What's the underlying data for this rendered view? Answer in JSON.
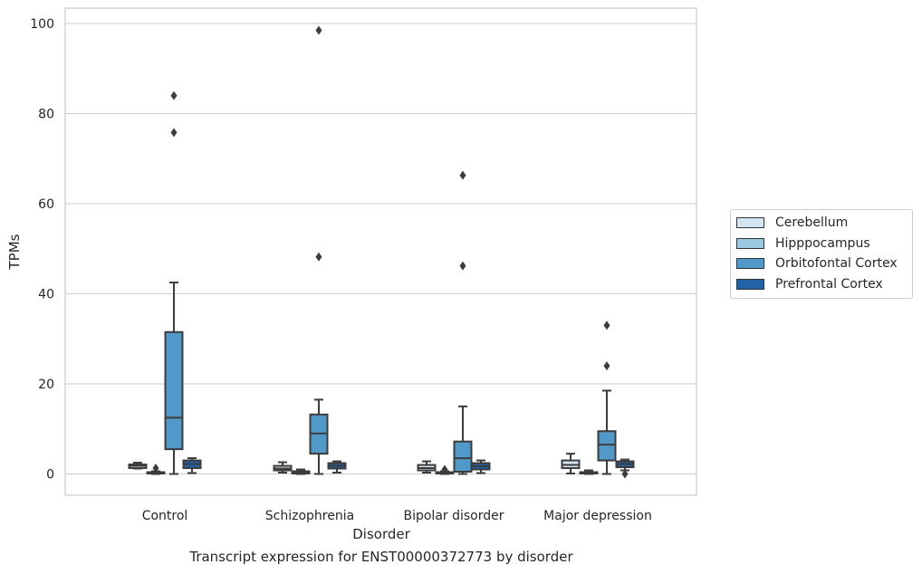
{
  "chart_data": {
    "type": "box",
    "xlabel": "Disorder",
    "ylabel": "TPMs",
    "categories": [
      "Control",
      "Schizophrenia",
      "Bipolar disorder",
      "Major depression"
    ],
    "ylim": [
      -5,
      103.5
    ],
    "yticks": [
      0,
      20,
      40,
      60,
      80,
      100
    ],
    "grid": "horizontal",
    "legend_placement": "right",
    "series": [
      {
        "name": "Cerebellum",
        "color": "#d3e4f3",
        "boxes": [
          {
            "whislo": 1.2,
            "q1": 1.3,
            "med": 1.8,
            "q3": 2.1,
            "whishi": 2.5,
            "fliers": []
          },
          {
            "whislo": 0.3,
            "q1": 0.8,
            "med": 1.2,
            "q3": 1.8,
            "whishi": 2.6,
            "fliers": []
          },
          {
            "whislo": 0.3,
            "q1": 0.8,
            "med": 1.3,
            "q3": 2.0,
            "whishi": 2.8,
            "fliers": []
          },
          {
            "whislo": 0.1,
            "q1": 1.3,
            "med": 2.0,
            "q3": 3.0,
            "whishi": 4.5,
            "fliers": []
          }
        ]
      },
      {
        "name": "Hipppocampus",
        "color": "#9ac8e0",
        "boxes": [
          {
            "whislo": 0.0,
            "q1": 0.1,
            "med": 0.2,
            "q3": 0.4,
            "whishi": 0.6,
            "fliers": [
              1.3
            ]
          },
          {
            "whislo": 0.0,
            "q1": 0.1,
            "med": 0.3,
            "q3": 0.6,
            "whishi": 1.0,
            "fliers": []
          },
          {
            "whislo": 0.0,
            "q1": 0.1,
            "med": 0.2,
            "q3": 0.4,
            "whishi": 0.6,
            "fliers": [
              1.0
            ]
          },
          {
            "whislo": 0.0,
            "q1": 0.1,
            "med": 0.2,
            "q3": 0.4,
            "whishi": 0.8,
            "fliers": []
          }
        ]
      },
      {
        "name": "Orbitofontal Cortex",
        "color": "#5199c8",
        "boxes": [
          {
            "whislo": 0.0,
            "q1": 5.5,
            "med": 12.5,
            "q3": 31.5,
            "whishi": 42.5,
            "fliers": [
              75.8,
              84.0
            ]
          },
          {
            "whislo": 0.0,
            "q1": 4.5,
            "med": 9.0,
            "q3": 13.2,
            "whishi": 16.5,
            "fliers": [
              48.2,
              98.5
            ]
          },
          {
            "whislo": 0.0,
            "q1": 0.5,
            "med": 3.5,
            "q3": 7.2,
            "whishi": 15.0,
            "fliers": [
              46.2,
              66.3
            ]
          },
          {
            "whislo": 0.0,
            "q1": 3.0,
            "med": 6.5,
            "q3": 9.5,
            "whishi": 18.5,
            "fliers": [
              24.0,
              33.0
            ]
          }
        ]
      },
      {
        "name": "Prefrontal Cortex",
        "color": "#2262a6",
        "boxes": [
          {
            "whislo": 0.2,
            "q1": 1.3,
            "med": 2.2,
            "q3": 3.0,
            "whishi": 3.5,
            "fliers": []
          },
          {
            "whislo": 0.3,
            "q1": 1.2,
            "med": 1.8,
            "q3": 2.4,
            "whishi": 2.8,
            "fliers": []
          },
          {
            "whislo": 0.2,
            "q1": 1.0,
            "med": 1.7,
            "q3": 2.4,
            "whishi": 3.0,
            "fliers": []
          },
          {
            "whislo": 0.8,
            "q1": 1.5,
            "med": 2.2,
            "q3": 2.8,
            "whishi": 3.2,
            "fliers": [
              0.0
            ]
          }
        ]
      }
    ],
    "caption": "Transcript expression for ENST00000372773 by disorder"
  }
}
